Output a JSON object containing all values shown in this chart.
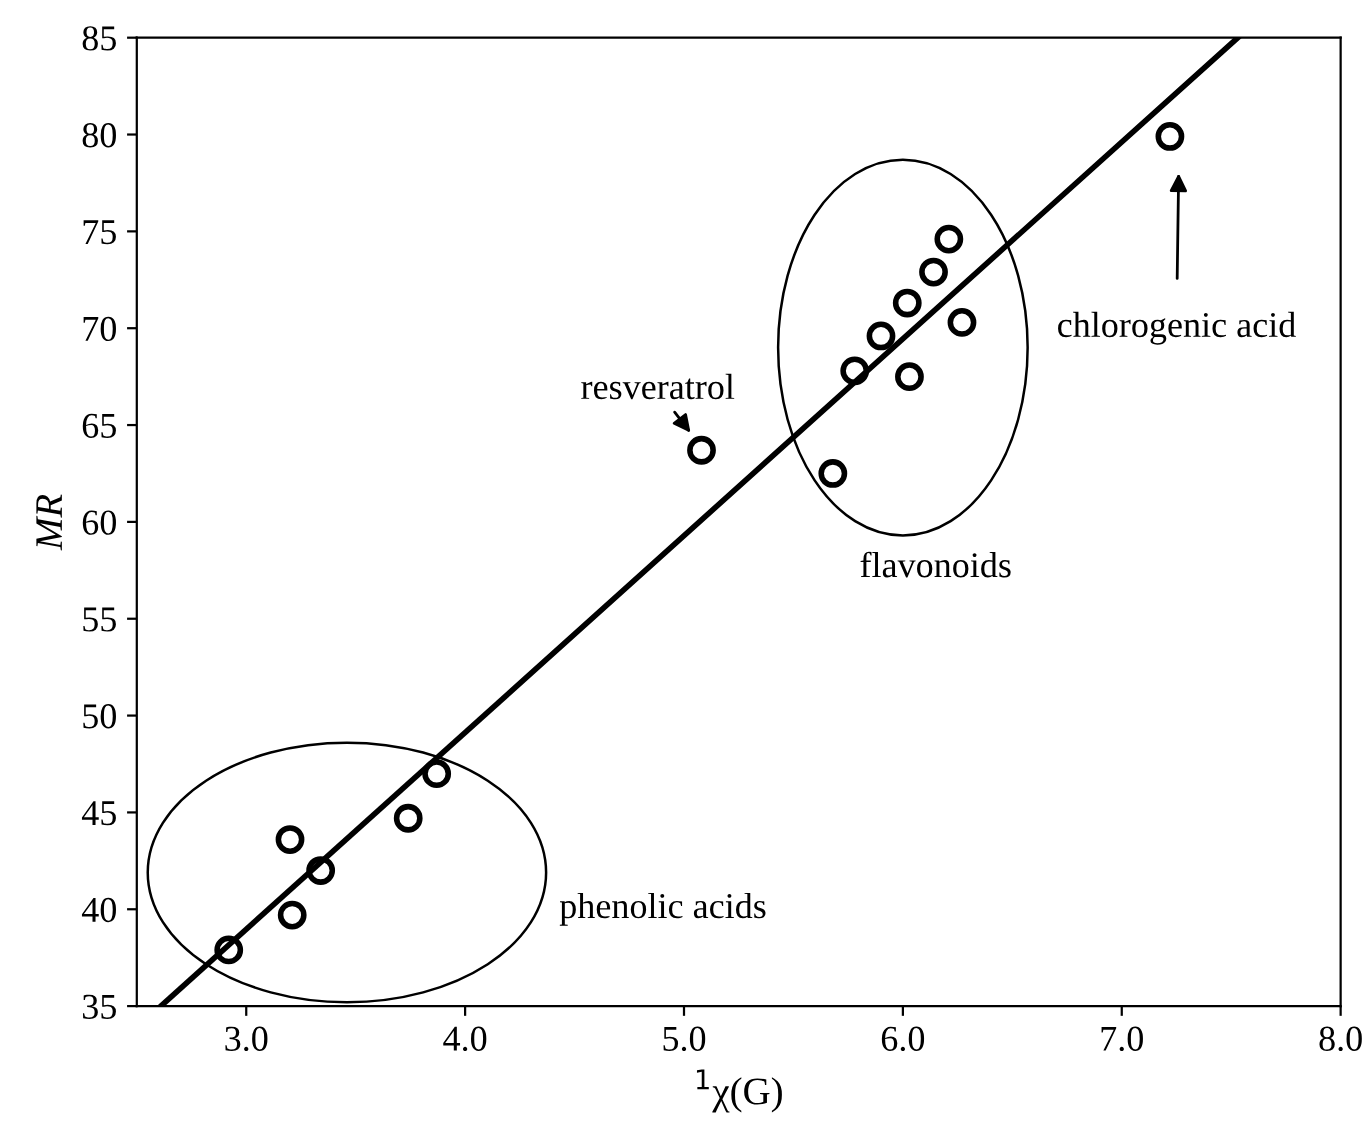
{
  "chart_data": {
    "type": "scatter",
    "xlabel": "$^{1}$χ(G)",
    "ylabel": "MR",
    "xlim": [
      2.5,
      8.0
    ],
    "xticks": [
      {
        "value": 3.0,
        "label": "3.0"
      },
      {
        "value": 4.0,
        "label": "4.0"
      },
      {
        "value": 5.0,
        "label": "5.0"
      },
      {
        "value": 6.0,
        "label": "6.0"
      },
      {
        "value": 7.0,
        "label": "7.0"
      },
      {
        "value": 8.0,
        "label": "8.0"
      }
    ],
    "ylim": [
      35,
      85
    ],
    "yticks": [
      35,
      40,
      45,
      50,
      55,
      60,
      65,
      70,
      75,
      80,
      85
    ],
    "grid": false,
    "legend": false,
    "series": [
      {
        "marker": "circle",
        "color": "#000000",
        "x": [
          2.92,
          3.2,
          3.21,
          3.34,
          3.74,
          3.87,
          5.08,
          5.68,
          5.78,
          5.9,
          6.02,
          6.03,
          6.14,
          6.21,
          6.27,
          7.22
        ],
        "values": [
          37.9,
          43.6,
          39.7,
          42.0,
          44.7,
          47.0,
          63.7,
          62.5,
          67.8,
          69.6,
          71.3,
          67.5,
          72.9,
          74.6,
          70.3,
          79.9
        ]
      },
      {
        "type": "line",
        "color": "#000000",
        "line_style": "solid",
        "x": [
          2.61,
          7.53
        ],
        "values": [
          35,
          85
        ]
      }
    ],
    "annotations": [
      "resveratrol",
      "chlorogenic acid",
      "flavonoids",
      "phenolic acids"
    ]
  }
}
